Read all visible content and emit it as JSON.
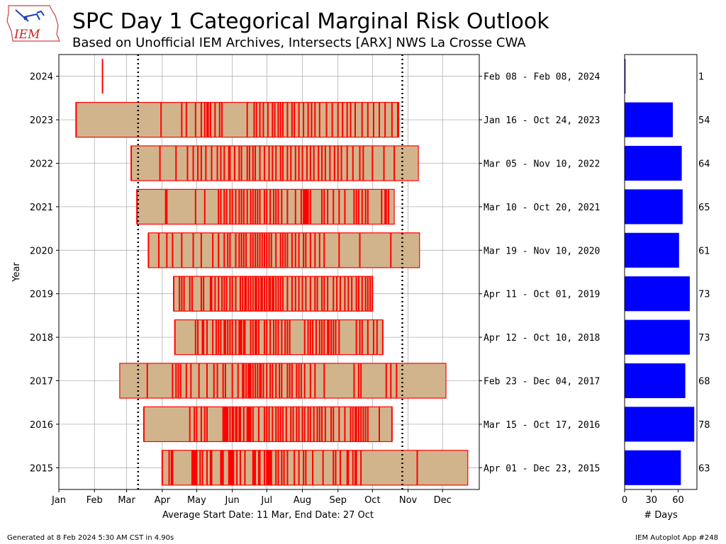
{
  "header": {
    "title": "SPC Day 1 Categorical Marginal Risk Outlook",
    "subtitle": "Based on Unofficial IEM Archives, Intersects [ARX] NWS La Crosse CWA",
    "logo_text": "IEM"
  },
  "footer": {
    "left": "Generated at 8 Feb 2024 5:30 AM CST in 4.90s",
    "right": "IEM Autoplot App #248"
  },
  "colors": {
    "event_line": "#ff0000",
    "span_fill": "#d2b48c",
    "span_edge": "#ff0000",
    "count_bar": "#0000ff",
    "grid": "#b0b0b0"
  },
  "chart_data": [
    {
      "type": "bar",
      "orientation": "horizontal-span",
      "title": "",
      "ylabel": "Year",
      "xlabel": "Average Start Date: 11 Mar, End Date: 27 Oct",
      "x_tick_labels": [
        "Jan",
        "Feb",
        "Mar",
        "Apr",
        "May",
        "Jun",
        "Jul",
        "Aug",
        "Sep",
        "Oct",
        "Nov",
        "Dec"
      ],
      "x_tick_days": [
        1,
        32,
        60,
        91,
        121,
        152,
        182,
        213,
        244,
        274,
        305,
        335
      ],
      "xlim": [
        1,
        367
      ],
      "grid": true,
      "average_start_day": 70,
      "average_end_day": 300,
      "years": [
        {
          "year": 2015,
          "start_day": 91,
          "end_day": 357,
          "range_label": "Apr 01 - Dec 23, 2015",
          "events": [
            91,
            97,
            99,
            100,
            117,
            118,
            119,
            120,
            121,
            124,
            126,
            130,
            133,
            134,
            142,
            143,
            144,
            149,
            150,
            151,
            152,
            153,
            156,
            159,
            163,
            170,
            171,
            172,
            175,
            176,
            180,
            182,
            183,
            184,
            185,
            186,
            190,
            192,
            195,
            197,
            200,
            206,
            210,
            214,
            216,
            222,
            231,
            240,
            242,
            246,
            252,
            253,
            257,
            259,
            260,
            264,
            313
          ]
        },
        {
          "year": 2016,
          "start_day": 75,
          "end_day": 291,
          "range_label": "Mar 15 - Oct 17, 2016",
          "events": [
            75,
            115,
            119,
            121,
            125,
            128,
            130,
            144,
            145,
            146,
            147,
            148,
            150,
            152,
            153,
            155,
            156,
            158,
            159,
            162,
            165,
            166,
            167,
            168,
            170,
            175,
            180,
            182,
            184,
            187,
            190,
            192,
            194,
            196,
            199,
            203,
            205,
            208,
            210,
            213,
            215,
            218,
            220,
            223,
            226,
            228,
            230,
            233,
            238,
            240,
            245,
            250,
            255,
            257,
            259,
            260,
            262,
            264,
            266,
            268,
            270,
            280,
            291
          ]
        },
        {
          "year": 2017,
          "start_day": 54,
          "end_day": 338,
          "range_label": "Feb 23 - Dec 04, 2017",
          "events": [
            78,
            100,
            103,
            105,
            107,
            112,
            116,
            123,
            130,
            136,
            139,
            144,
            146,
            152,
            157,
            161,
            162,
            164,
            166,
            167,
            168,
            170,
            172,
            174,
            176,
            177,
            179,
            182,
            185,
            187,
            190,
            193,
            195,
            200,
            202,
            204,
            208,
            210,
            212,
            215,
            220,
            224,
            232,
            258,
            262,
            264,
            286,
            290,
            295
          ]
        },
        {
          "year": 2018,
          "start_day": 102,
          "end_day": 283,
          "range_label": "Apr 12 - Oct 10, 2018",
          "events": [
            102,
            120,
            122,
            126,
            127,
            130,
            135,
            138,
            140,
            142,
            145,
            146,
            148,
            150,
            152,
            155,
            158,
            159,
            160,
            162,
            163,
            168,
            170,
            172,
            173,
            175,
            180,
            182,
            185,
            188,
            190,
            192,
            195,
            198,
            200,
            202,
            215,
            218,
            220,
            222,
            225,
            228,
            230,
            232,
            235,
            236,
            238,
            240,
            242,
            245,
            260,
            263,
            265,
            270,
            275,
            278,
            283
          ]
        },
        {
          "year": 2019,
          "start_day": 101,
          "end_day": 274,
          "range_label": "Apr 11 - Oct 01, 2019",
          "events": [
            101,
            106,
            108,
            110,
            115,
            117,
            125,
            127,
            133,
            134,
            137,
            140,
            143,
            145,
            147,
            150,
            152,
            155,
            159,
            161,
            163,
            164,
            166,
            168,
            170,
            172,
            173,
            175,
            177,
            178,
            180,
            182,
            184,
            185,
            187,
            188,
            190,
            192,
            194,
            196,
            200,
            204,
            207,
            210,
            213,
            216,
            220,
            224,
            226,
            230,
            232,
            235,
            240,
            243,
            246,
            250,
            253,
            256,
            260,
            262,
            265,
            268,
            270,
            272,
            274
          ]
        },
        {
          "year": 2020,
          "start_day": 79,
          "end_day": 315,
          "range_label": "Mar 19 - Nov 10, 2020",
          "events": [
            79,
            88,
            95,
            100,
            108,
            118,
            125,
            135,
            140,
            145,
            148,
            150,
            155,
            158,
            160,
            162,
            164,
            168,
            170,
            172,
            174,
            176,
            178,
            180,
            182,
            184,
            186,
            190,
            194,
            196,
            198,
            200,
            204,
            207,
            210,
            214,
            216,
            220,
            224,
            228,
            232,
            245,
            263,
            290
          ]
        },
        {
          "year": 2021,
          "start_day": 69,
          "end_day": 293,
          "range_label": "Mar 10 - Oct 20, 2021",
          "events": [
            69,
            94,
            95,
            120,
            128,
            140,
            142,
            145,
            147,
            150,
            152,
            155,
            158,
            160,
            162,
            165,
            168,
            170,
            172,
            174,
            176,
            180,
            182,
            185,
            188,
            190,
            192,
            195,
            200,
            207,
            212,
            214,
            215,
            216,
            217,
            218,
            220,
            230,
            232,
            235,
            240,
            245,
            250,
            258,
            260,
            262,
            265,
            268,
            270,
            282,
            285,
            286,
            288
          ]
        },
        {
          "year": 2022,
          "start_day": 64,
          "end_day": 314,
          "range_label": "Mar 05 - Nov 10, 2022",
          "events": [
            64,
            89,
            103,
            113,
            118,
            122,
            125,
            129,
            134,
            139,
            142,
            145,
            149,
            150,
            154,
            158,
            160,
            165,
            167,
            170,
            172,
            176,
            180,
            184,
            187,
            190,
            194,
            196,
            200,
            203,
            207,
            210,
            213,
            217,
            220,
            223,
            227,
            230,
            233,
            237,
            241,
            244,
            247,
            252,
            257,
            263,
            266,
            274,
            284,
            293
          ]
        },
        {
          "year": 2023,
          "start_day": 16,
          "end_day": 297,
          "range_label": "Jan 16 - Oct 24, 2023",
          "events": [
            16,
            90,
            108,
            112,
            120,
            125,
            128,
            130,
            131,
            133,
            137,
            141,
            143,
            165,
            171,
            173,
            176,
            179,
            183,
            187,
            189,
            192,
            194,
            196,
            200,
            204,
            206,
            210,
            214,
            218,
            221,
            224,
            228,
            234,
            239,
            244,
            248,
            252,
            255,
            259,
            265,
            270,
            275,
            280,
            285,
            291,
            296
          ]
        },
        {
          "year": 2024,
          "start_day": 39,
          "end_day": 39,
          "range_label": "Feb 08 - Feb 08, 2024",
          "events": [
            39
          ]
        }
      ]
    },
    {
      "type": "bar",
      "orientation": "horizontal",
      "title": "",
      "xlabel": "# Days",
      "x_tick_labels": [
        "0",
        "30",
        "60"
      ],
      "x_tick_values": [
        0,
        30,
        60
      ],
      "xlim": [
        0,
        81
      ],
      "categories": [
        "2015",
        "2016",
        "2017",
        "2018",
        "2019",
        "2020",
        "2021",
        "2022",
        "2023",
        "2024"
      ],
      "values": [
        63,
        78,
        68,
        73,
        73,
        61,
        65,
        64,
        54,
        1
      ]
    }
  ]
}
